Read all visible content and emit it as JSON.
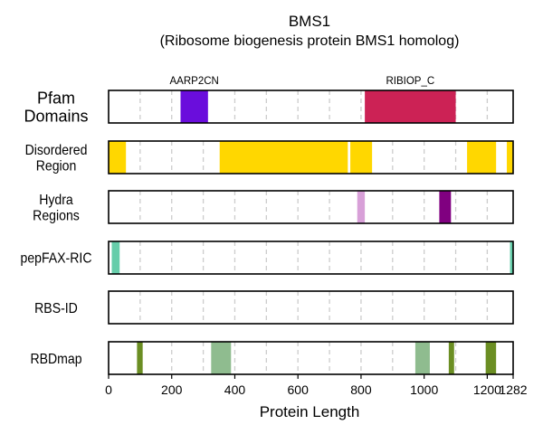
{
  "chart_data": {
    "type": "track",
    "title": "BMS1",
    "subtitle": "(Ribosome biogenesis protein BMS1 homolog)",
    "xlabel": "Protein Length",
    "xlim": [
      0,
      1282
    ],
    "xticks": [
      0,
      200,
      400,
      600,
      800,
      1000,
      1200,
      1282
    ],
    "grid_x": [
      100,
      200,
      300,
      400,
      500,
      600,
      700,
      800,
      900,
      1000,
      1100,
      1200
    ],
    "tracks": [
      {
        "name": "Pfam\nDomains",
        "segments": [
          {
            "start": 228,
            "end": 315,
            "color": "#6a0ddc",
            "label": "AARP2CN"
          },
          {
            "start": 812,
            "end": 1100,
            "color": "#cc2255",
            "label": "RIBIOP_C"
          }
        ]
      },
      {
        "name": "Disordered\nRegion",
        "segments": [
          {
            "start": 0,
            "end": 55,
            "color": "#ffd700"
          },
          {
            "start": 352,
            "end": 758,
            "color": "#ffd700"
          },
          {
            "start": 766,
            "end": 835,
            "color": "#ffd700"
          },
          {
            "start": 1136,
            "end": 1228,
            "color": "#ffd700"
          },
          {
            "start": 1262,
            "end": 1282,
            "color": "#ffd700"
          }
        ]
      },
      {
        "name": "Hydra\nRegions",
        "segments": [
          {
            "start": 788,
            "end": 812,
            "color": "#d8a0d8"
          },
          {
            "start": 1048,
            "end": 1085,
            "color": "#800080"
          }
        ]
      },
      {
        "name": "pepFAX-RIC",
        "segments": [
          {
            "start": 10,
            "end": 35,
            "color": "#66cdaa"
          },
          {
            "start": 1272,
            "end": 1282,
            "color": "#66cdaa"
          }
        ]
      },
      {
        "name": "RBS-ID",
        "segments": []
      },
      {
        "name": "RBDmap",
        "segments": [
          {
            "start": 90,
            "end": 108,
            "color": "#6b8e23"
          },
          {
            "start": 325,
            "end": 388,
            "color": "#8fbc8f"
          },
          {
            "start": 972,
            "end": 1018,
            "color": "#8fbc8f"
          },
          {
            "start": 1078,
            "end": 1095,
            "color": "#6b8e23"
          },
          {
            "start": 1195,
            "end": 1228,
            "color": "#6b8e23"
          }
        ]
      }
    ]
  }
}
